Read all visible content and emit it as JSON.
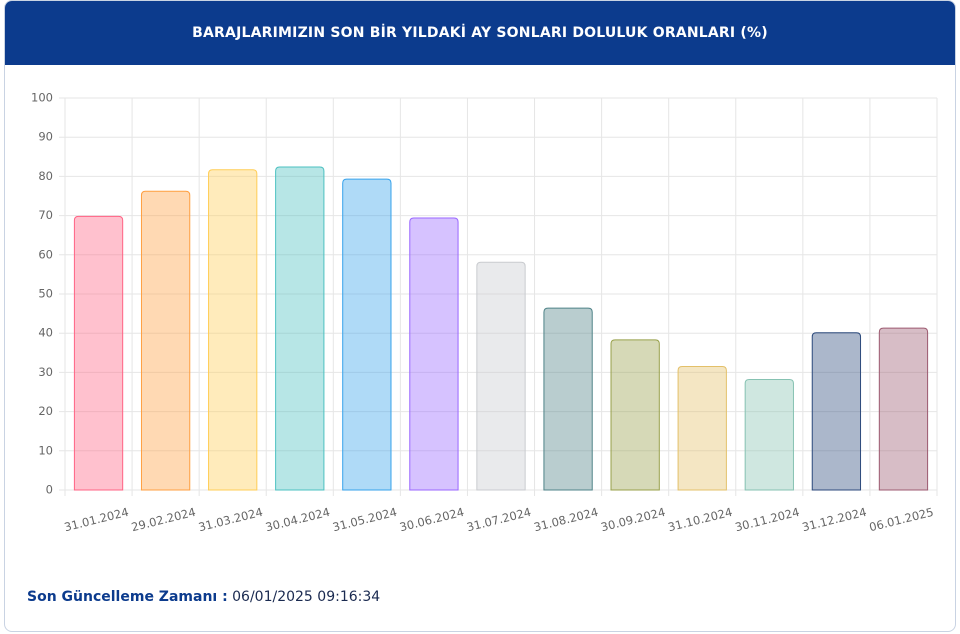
{
  "chart_data": {
    "type": "bar",
    "title": "BARAJLARIMIZIN SON BİR YILDAKİ AY SONLARI DOLULUK ORANLARI (%)",
    "categories": [
      "31.01.2024",
      "29.02.2024",
      "31.03.2024",
      "30.04.2024",
      "31.05.2024",
      "30.06.2024",
      "31.07.2024",
      "31.08.2024",
      "30.09.2024",
      "31.10.2024",
      "30.11.2024",
      "31.12.2024",
      "06.01.2025"
    ],
    "values": [
      69.8,
      76.2,
      81.7,
      82.4,
      79.3,
      69.4,
      58.1,
      46.4,
      38.3,
      31.5,
      28.2,
      40.1,
      41.3
    ],
    "colors": [
      "#ff6384",
      "#ff9f40",
      "#ffcd56",
      "#4bc0c0",
      "#36a2eb",
      "#9966ff",
      "#c9cbcf",
      "#4f8388",
      "#98a04a",
      "#e3c069",
      "#86c2b2",
      "#2c4a7c",
      "#9c5a70"
    ],
    "ylim": [
      0,
      100
    ],
    "yticks": [
      0,
      10,
      20,
      30,
      40,
      50,
      60,
      70,
      80,
      90,
      100
    ],
    "grid": true
  },
  "footer": {
    "label": "Son Güncelleme Zamanı :",
    "value": "06/01/2025 09:16:34"
  }
}
